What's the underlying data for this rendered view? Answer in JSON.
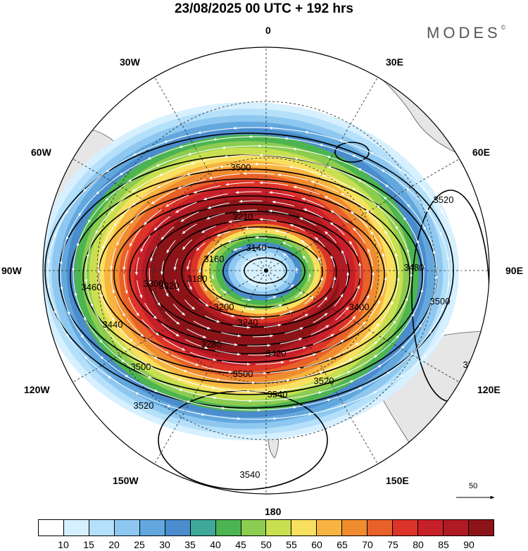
{
  "title": "23/08/2025  00 UTC  + 192 hrs",
  "brand": "MODES",
  "brand_mark": "©",
  "longitude_labels": [
    {
      "key": "0",
      "text": "0"
    },
    {
      "key": "30E",
      "text": "30E"
    },
    {
      "key": "60E",
      "text": "60E"
    },
    {
      "key": "90E",
      "text": "90E"
    },
    {
      "key": "120E",
      "text": "120E"
    },
    {
      "key": "150E",
      "text": "150E"
    },
    {
      "key": "180",
      "text": "180"
    },
    {
      "key": "150W",
      "text": "150W"
    },
    {
      "key": "120W",
      "text": "120W"
    },
    {
      "key": "90W",
      "text": "90W"
    },
    {
      "key": "60W",
      "text": "60W"
    },
    {
      "key": "30W",
      "text": "30W"
    }
  ],
  "contour_labels": [
    "3500",
    "3520",
    "3480",
    "3500",
    "3520",
    "3520",
    "3540",
    "3540",
    "3500",
    "3460",
    "3440",
    "3420",
    "3400",
    "3200",
    "3240",
    "3280",
    "3300",
    "3320",
    "3140",
    "3160",
    "3180",
    "3210",
    "3500",
    "3520"
  ],
  "vector_reference": {
    "value": "50"
  },
  "colorbar": {
    "colors": [
      "#ffffff",
      "#d6f0ff",
      "#b4e0fa",
      "#8ec8f0",
      "#62a8de",
      "#4a8ccc",
      "#3fa898",
      "#4cb450",
      "#8ccc50",
      "#c8e050",
      "#f8e060",
      "#f8b440",
      "#f08c30",
      "#e8602a",
      "#dc3428",
      "#c8202a",
      "#b01a22",
      "#8c1418"
    ],
    "ticks": [
      "10",
      "15",
      "20",
      "25",
      "30",
      "35",
      "40",
      "45",
      "50",
      "55",
      "60",
      "65",
      "70",
      "75",
      "80",
      "85",
      "90"
    ]
  },
  "colors": {
    "land": "#e6e6e6",
    "coast": "#555555",
    "contour": "#000000",
    "vector": "#ffffff"
  }
}
